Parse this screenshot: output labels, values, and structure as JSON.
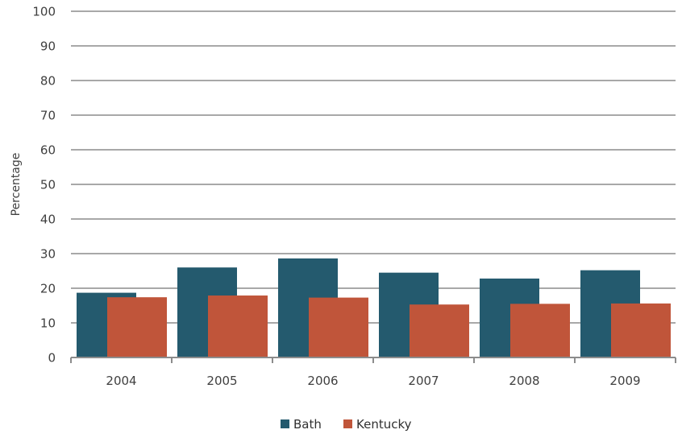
{
  "chart_data": {
    "type": "bar",
    "title": "",
    "xlabel": "",
    "ylabel": "Percentage",
    "ylim": [
      0,
      100
    ],
    "yticks": [
      0,
      10,
      20,
      30,
      40,
      50,
      60,
      70,
      80,
      90,
      100
    ],
    "categories": [
      "2004",
      "2005",
      "2006",
      "2007",
      "2008",
      "2009"
    ],
    "series": [
      {
        "name": "Bath",
        "color": "#245a6e",
        "values": [
          18.7,
          26.0,
          28.6,
          24.5,
          22.8,
          25.2
        ]
      },
      {
        "name": "Kentucky",
        "color": "#c0553a",
        "values": [
          17.4,
          17.9,
          17.3,
          15.3,
          15.5,
          15.6
        ]
      }
    ],
    "grid": true,
    "legend": "bottom-center"
  },
  "colors": {
    "grid": "#8c8c8c",
    "axis": "#8c8c8c",
    "text": "#404040"
  }
}
